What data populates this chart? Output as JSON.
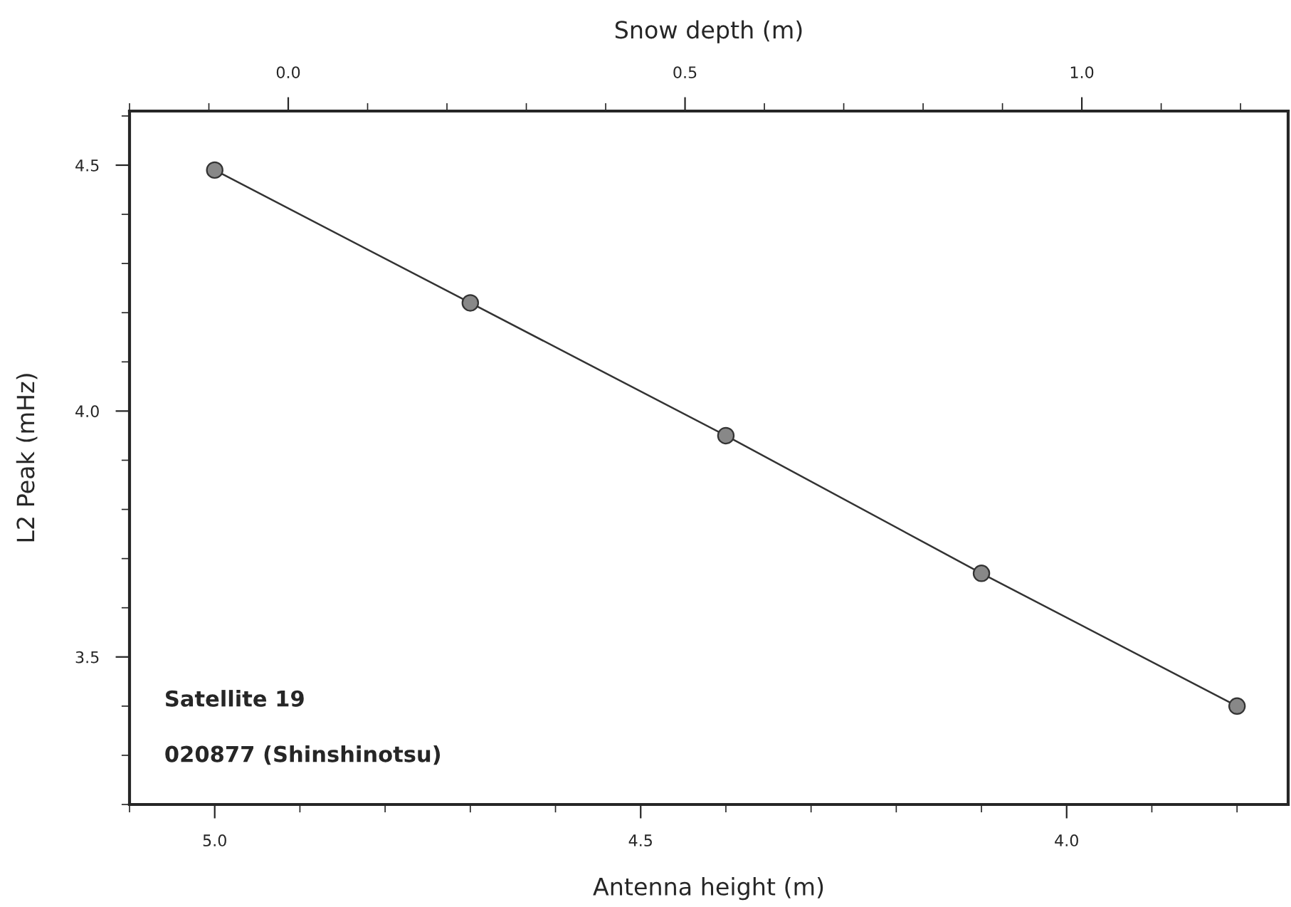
{
  "chart_data": {
    "type": "line",
    "xlabel": "Antenna height (m)",
    "ylabel": "L2 Peak (mHz)",
    "x2label": "Snow depth (m)",
    "x": [
      5.0,
      4.7,
      4.4,
      4.1,
      3.8
    ],
    "series": [
      {
        "color": "#333333",
        "values": [
          4.49,
          4.22,
          3.95,
          3.67,
          3.4
        ]
      }
    ],
    "marker": "circle",
    "line_style": "solid",
    "grid": false,
    "legend": false,
    "xlim": [
      5.1,
      3.74
    ],
    "xticks": [
      {
        "value": 5.0,
        "label": "5.0"
      },
      {
        "value": 4.5,
        "label": "4.5"
      },
      {
        "value": 4.0,
        "label": "4.0"
      }
    ],
    "x2lim": [
      -0.2,
      1.26
    ],
    "x2ticks": [
      {
        "value": 0.0,
        "label": "0.0"
      },
      {
        "value": 0.5,
        "label": "0.5"
      },
      {
        "value": 1.0,
        "label": "1.0"
      }
    ],
    "ylim": [
      3.2,
      4.61
    ],
    "yticks": [
      {
        "value": 3.5,
        "label": "3.5"
      },
      {
        "value": 4.0,
        "label": "4.0"
      },
      {
        "value": 4.5,
        "label": "4.5"
      }
    ],
    "annotations": [
      "Satellite 19",
      "020877 (Shinshinotsu)"
    ]
  }
}
